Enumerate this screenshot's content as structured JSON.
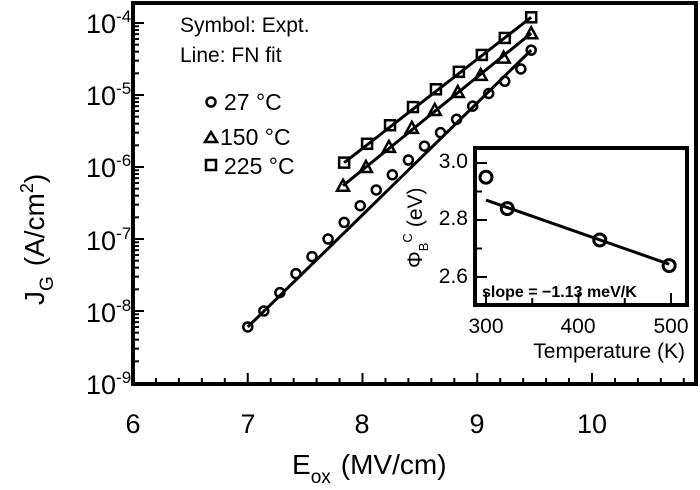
{
  "chart_data": [
    {
      "type": "scatter",
      "title": "",
      "xlabel": "E_ox (MV/cm)",
      "ylabel": "J_G (A/cm^2)",
      "xlim": [
        6,
        10.9
      ],
      "ylim_log10": [
        -9,
        -3.7
      ],
      "yscale": "log",
      "xticks": [
        6,
        7,
        8,
        9,
        10
      ],
      "yticks": [
        "10^-9",
        "10^-8",
        "10^-7",
        "10^-6",
        "10^-5",
        "10^-4"
      ],
      "legend_text": [
        "Symbol: Expt.",
        "Line: FN fit"
      ],
      "series": [
        {
          "name": "27 °C",
          "marker": "circle",
          "x": [
            7.0,
            7.14,
            7.28,
            7.42,
            7.56,
            7.7,
            7.84,
            7.98,
            8.12,
            8.26,
            8.4,
            8.54,
            8.68,
            8.82,
            8.96,
            9.1,
            9.24,
            9.38,
            9.47
          ],
          "y": [
            6e-09,
            1e-08,
            1.8e-08,
            3.3e-08,
            5.7e-08,
            1e-07,
            1.7e-07,
            2.9e-07,
            4.8e-07,
            7.8e-07,
            1.25e-06,
            1.95e-06,
            3e-06,
            4.6e-06,
            7e-06,
            1.05e-05,
            1.55e-05,
            2.3e-05,
            4.2e-05
          ]
        },
        {
          "name": "150 °C",
          "marker": "triangle",
          "x": [
            7.83,
            8.03,
            8.23,
            8.43,
            8.63,
            8.83,
            9.03,
            9.23,
            9.47
          ],
          "y": [
            5.5e-07,
            1e-06,
            1.9e-06,
            3.5e-06,
            6.2e-06,
            1.1e-05,
            1.9e-05,
            3.3e-05,
            7.2e-05
          ]
        },
        {
          "name": "225 °C",
          "marker": "square",
          "x": [
            7.84,
            8.04,
            8.24,
            8.44,
            8.64,
            8.84,
            9.04,
            9.24,
            9.47
          ],
          "y": [
            1.15e-06,
            2.1e-06,
            3.8e-06,
            6.8e-06,
            1.2e-05,
            2.1e-05,
            3.6e-05,
            6.2e-05,
            0.00012
          ]
        }
      ]
    },
    {
      "type": "scatter",
      "title": "inset",
      "xlabel": "Temperature (K)",
      "ylabel": "Φ_B^C (eV)",
      "xlim": [
        295,
        510
      ],
      "ylim": [
        2.55,
        3.05
      ],
      "xticks": [
        300,
        400,
        500
      ],
      "yticks": [
        2.6,
        2.8,
        3.0
      ],
      "annotation": "slope = −1.13 meV/K",
      "series": [
        {
          "name": "data",
          "marker": "circle",
          "x": [
            300,
            323,
            423,
            498
          ],
          "y": [
            2.95,
            2.84,
            2.73,
            2.64
          ]
        },
        {
          "name": "fit",
          "type": "line",
          "x": [
            300,
            498
          ],
          "y": [
            2.87,
            2.645
          ]
        }
      ]
    }
  ],
  "labels": {
    "y_ticks": [
      {
        "base": "10",
        "exp": "-4"
      },
      {
        "base": "10",
        "exp": "-5"
      },
      {
        "base": "10",
        "exp": "-6"
      },
      {
        "base": "10",
        "exp": "-7"
      },
      {
        "base": "10",
        "exp": "-8"
      },
      {
        "base": "10",
        "exp": "-9"
      }
    ],
    "x_ticks": [
      "6",
      "7",
      "8",
      "9",
      "10"
    ],
    "xlabel_main": "E",
    "xlabel_sub": "ox",
    "xlabel_unit": "(MV/cm)",
    "ylabel_main": "J",
    "ylabel_sub": "G",
    "ylabel_unit": "(A/cm",
    "ylabel_sup": "2",
    "ylabel_close": ")",
    "legend_line1": "Symbol: Expt.",
    "legend_line2": "Line: FN fit",
    "legend_items": [
      "27 °C",
      "150 °C",
      "225 °C"
    ],
    "inset_yticks": [
      "3.0",
      "2.8",
      "2.6"
    ],
    "inset_xticks": [
      "300",
      "400",
      "500"
    ],
    "inset_xlabel": "Temperature (K)",
    "inset_ylabel": "Φ",
    "inset_ylabel_sub": "B",
    "inset_ylabel_sup": "C",
    "inset_ylabel_unit": "(eV)",
    "inset_annotation": "slope = −1.13 meV/K"
  }
}
